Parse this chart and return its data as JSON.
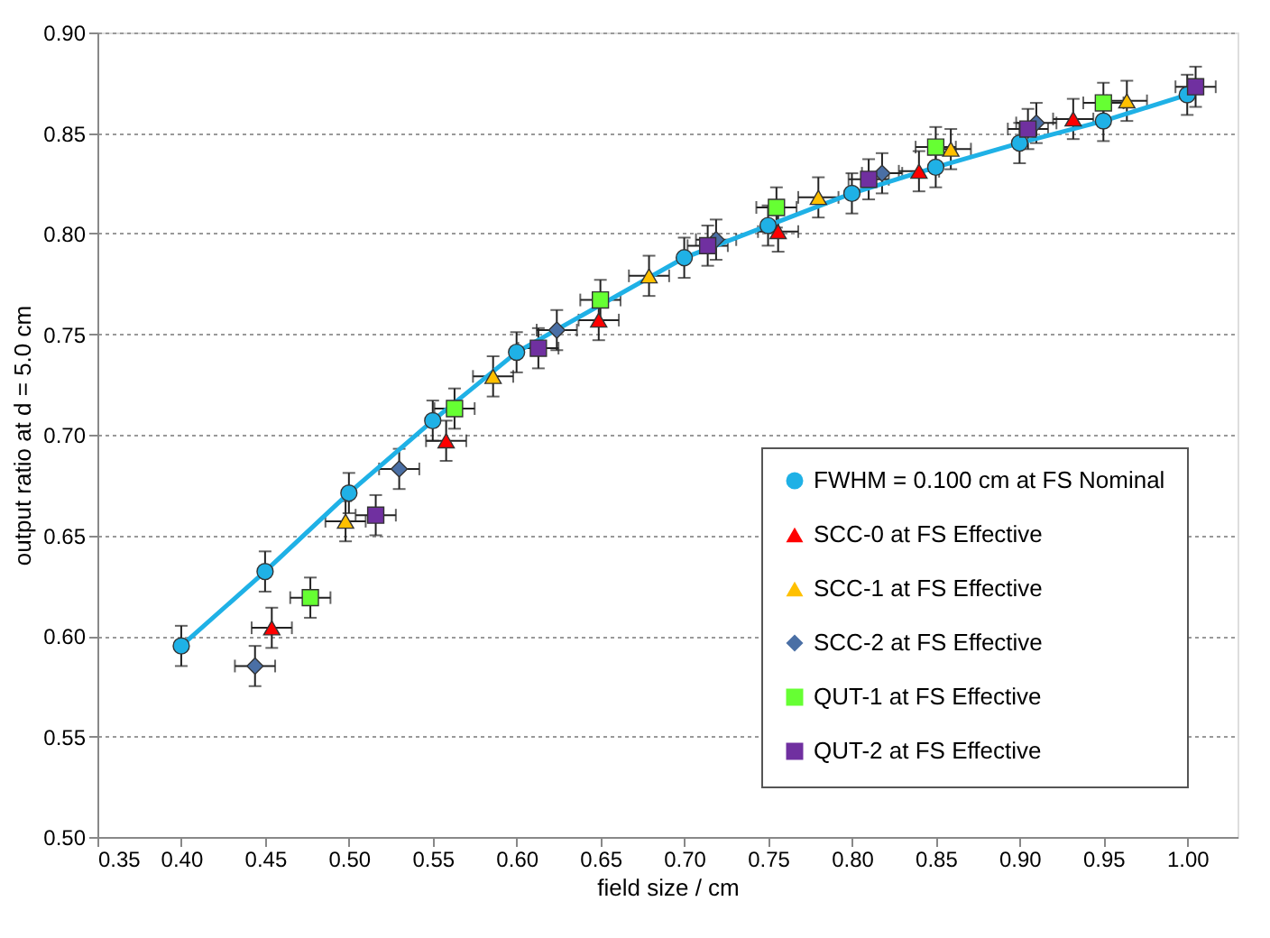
{
  "chart_data": {
    "type": "scatter",
    "xlabel": "field size / cm",
    "ylabel": "output ratio at d = 5.0 cm",
    "xlim": [
      0.35,
      1.03
    ],
    "ylim": [
      0.5,
      0.9
    ],
    "xticks": [
      {
        "value": 0.35,
        "label": "0.35"
      },
      {
        "value": 0.4,
        "label": "0.40"
      },
      {
        "value": 0.45,
        "label": "0.45"
      },
      {
        "value": 0.5,
        "label": "0.50"
      },
      {
        "value": 0.55,
        "label": "0.55"
      },
      {
        "value": 0.6,
        "label": "0.60"
      },
      {
        "value": 0.65,
        "label": "0.65"
      },
      {
        "value": 0.7,
        "label": "0.70"
      },
      {
        "value": 0.75,
        "label": "0.75"
      },
      {
        "value": 0.8,
        "label": "0.80"
      },
      {
        "value": 0.85,
        "label": "0.85"
      },
      {
        "value": 0.9,
        "label": "0.90"
      },
      {
        "value": 0.95,
        "label": "0.95"
      },
      {
        "value": 1.0,
        "label": "1.00"
      }
    ],
    "yticks": [
      {
        "value": 0.5,
        "label": "0.50"
      },
      {
        "value": 0.55,
        "label": "0.55"
      },
      {
        "value": 0.6,
        "label": "0.60"
      },
      {
        "value": 0.65,
        "label": "0.65"
      },
      {
        "value": 0.7,
        "label": "0.70"
      },
      {
        "value": 0.75,
        "label": "0.75"
      },
      {
        "value": 0.8,
        "label": "0.80"
      },
      {
        "value": 0.85,
        "label": "0.85"
      },
      {
        "value": 0.9,
        "label": "0.90"
      }
    ],
    "grid": "y",
    "legend": "bottom right",
    "series": [
      {
        "name": "FWHM = 0.100 cm at FS Nominal",
        "type": "line",
        "marker": "circle",
        "color": "#1fb1e6",
        "x": [
          0.4,
          0.45,
          0.5,
          0.55,
          0.6,
          0.7,
          0.75,
          0.8,
          0.85,
          0.9,
          0.95,
          1.0
        ],
        "values": [
          0.595,
          0.632,
          0.671,
          0.707,
          0.741,
          0.788,
          0.804,
          0.82,
          0.833,
          0.845,
          0.856,
          0.869
        ],
        "errors": [
          0.01,
          0.01,
          0.01,
          0.01,
          0.01,
          0.01,
          0.01,
          0.01,
          0.01,
          0.01,
          0.01,
          0.01
        ]
      },
      {
        "name": "SCC-0 at FS Effective",
        "type": "scatter",
        "marker": "triangle",
        "color": "#ff0000",
        "x": [
          0.454,
          0.558,
          0.649,
          0.756,
          0.84,
          0.932
        ],
        "values": [
          0.604,
          0.697,
          0.757,
          0.801,
          0.831,
          0.857
        ],
        "errors": [
          0.01,
          0.01,
          0.01,
          0.01,
          0.01,
          0.01
        ],
        "xerrors": [
          0.012,
          0.012,
          0.012,
          0.012,
          0.012,
          0.012
        ]
      },
      {
        "name": "SCC-1 at FS Effective",
        "type": "scatter",
        "marker": "triangle",
        "color": "#ffc000",
        "x": [
          0.498,
          0.586,
          0.679,
          0.78,
          0.859,
          0.964
        ],
        "values": [
          0.657,
          0.729,
          0.779,
          0.818,
          0.842,
          0.866
        ],
        "errors": [
          0.01,
          0.01,
          0.01,
          0.01,
          0.01,
          0.01
        ],
        "xerrors": [
          0.012,
          0.012,
          0.012,
          0.012,
          0.012,
          0.012
        ]
      },
      {
        "name": "SCC-2 at FS Effective",
        "type": "scatter",
        "marker": "diamond",
        "color": "#4a6fa5",
        "x": [
          0.444,
          0.53,
          0.624,
          0.719,
          0.818,
          0.91
        ],
        "values": [
          0.585,
          0.683,
          0.752,
          0.797,
          0.83,
          0.855
        ],
        "errors": [
          0.01,
          0.01,
          0.01,
          0.01,
          0.01,
          0.01
        ],
        "xerrors": [
          0.012,
          0.012,
          0.012,
          0.012,
          0.012,
          0.012
        ]
      },
      {
        "name": "QUT-1 at FS Effective",
        "type": "scatter",
        "marker": "square",
        "color": "#66ff33",
        "x": [
          0.477,
          0.563,
          0.65,
          0.755,
          0.85,
          0.95
        ],
        "values": [
          0.619,
          0.713,
          0.767,
          0.813,
          0.843,
          0.865
        ],
        "errors": [
          0.01,
          0.01,
          0.01,
          0.01,
          0.01,
          0.01
        ],
        "xerrors": [
          0.012,
          0.012,
          0.012,
          0.012,
          0.012,
          0.012
        ]
      },
      {
        "name": "QUT-2 at FS Effective",
        "type": "scatter",
        "marker": "square",
        "color": "#7030a0",
        "x": [
          0.516,
          0.613,
          0.714,
          0.81,
          0.905,
          1.005
        ],
        "values": [
          0.66,
          0.743,
          0.794,
          0.827,
          0.852,
          0.873
        ],
        "errors": [
          0.01,
          0.01,
          0.01,
          0.01,
          0.01,
          0.01
        ],
        "xerrors": [
          0.012,
          0.012,
          0.012,
          0.012,
          0.012,
          0.012
        ]
      }
    ]
  }
}
